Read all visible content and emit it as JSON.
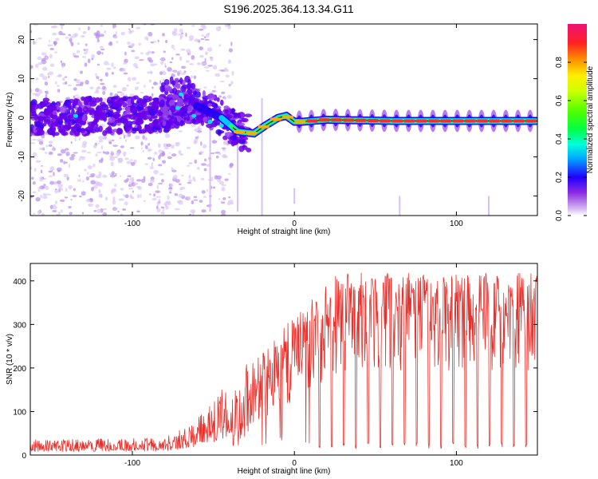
{
  "title": "S196.2025.364.13.34.G11",
  "chart_data": [
    {
      "type": "heatmap",
      "name": "spectrogram",
      "xlabel": "Height of straight line (km)",
      "ylabel": "Frequency (Hz)",
      "xlim": [
        -163,
        150
      ],
      "ylim": [
        -25,
        24
      ],
      "xticks": [
        -100,
        0,
        100
      ],
      "xtick_labels": [
        "-100",
        "0",
        "100"
      ],
      "yticks": [
        20,
        10,
        0,
        -10,
        -20
      ],
      "ytick_labels": [
        "20",
        "10",
        "0",
        "-10",
        "-20"
      ],
      "ridge": {
        "x": [
          -163,
          -80,
          -60,
          -45,
          -35,
          -25,
          -18,
          -10,
          -5,
          0,
          5,
          20,
          60,
          100,
          150
        ],
        "y": [
          0,
          1,
          3,
          0,
          -3.5,
          -4,
          -2,
          0,
          0.5,
          -1,
          -1,
          -0.5,
          -0.8,
          -0.8,
          -0.8
        ]
      },
      "colorbar": {
        "label": "Normalized spectral amplitude",
        "range": [
          0.0,
          1.0
        ],
        "ticks": [
          0.0,
          0.2,
          0.4,
          0.6,
          0.8
        ],
        "tick_labels": [
          "0.0",
          "0.2",
          "0.4",
          "0.6",
          "0.8"
        ]
      }
    },
    {
      "type": "line",
      "name": "snr",
      "xlabel": "Height of straight line (km)",
      "ylabel": "SNR (10 * v/v)",
      "xlim": [
        -163,
        150
      ],
      "ylim": [
        0,
        440
      ],
      "xticks": [
        -100,
        0,
        100
      ],
      "xtick_labels": [
        "-100",
        "0",
        "100"
      ],
      "yticks": [
        0,
        100,
        200,
        300,
        400
      ],
      "ytick_labels": [
        "0",
        "100",
        "200",
        "300",
        "400"
      ],
      "color": "#e8312c",
      "envelope": {
        "x": [
          -163,
          -80,
          -70,
          -55,
          -45,
          -35,
          -25,
          -15,
          -5,
          0,
          10,
          20,
          30,
          150
        ],
        "base": [
          12,
          15,
          20,
          40,
          55,
          80,
          120,
          150,
          190,
          200,
          250,
          290,
          320,
          320
        ],
        "peak": [
          35,
          40,
          60,
          100,
          150,
          200,
          220,
          250,
          300,
          320,
          360,
          400,
          420,
          420
        ]
      },
      "dip_period_km": 7.5,
      "dip_start_km": 15,
      "dip_value": 15
    }
  ],
  "colors": {
    "axes": "#000000",
    "line": "#e8312c",
    "background": "#ffffff"
  }
}
